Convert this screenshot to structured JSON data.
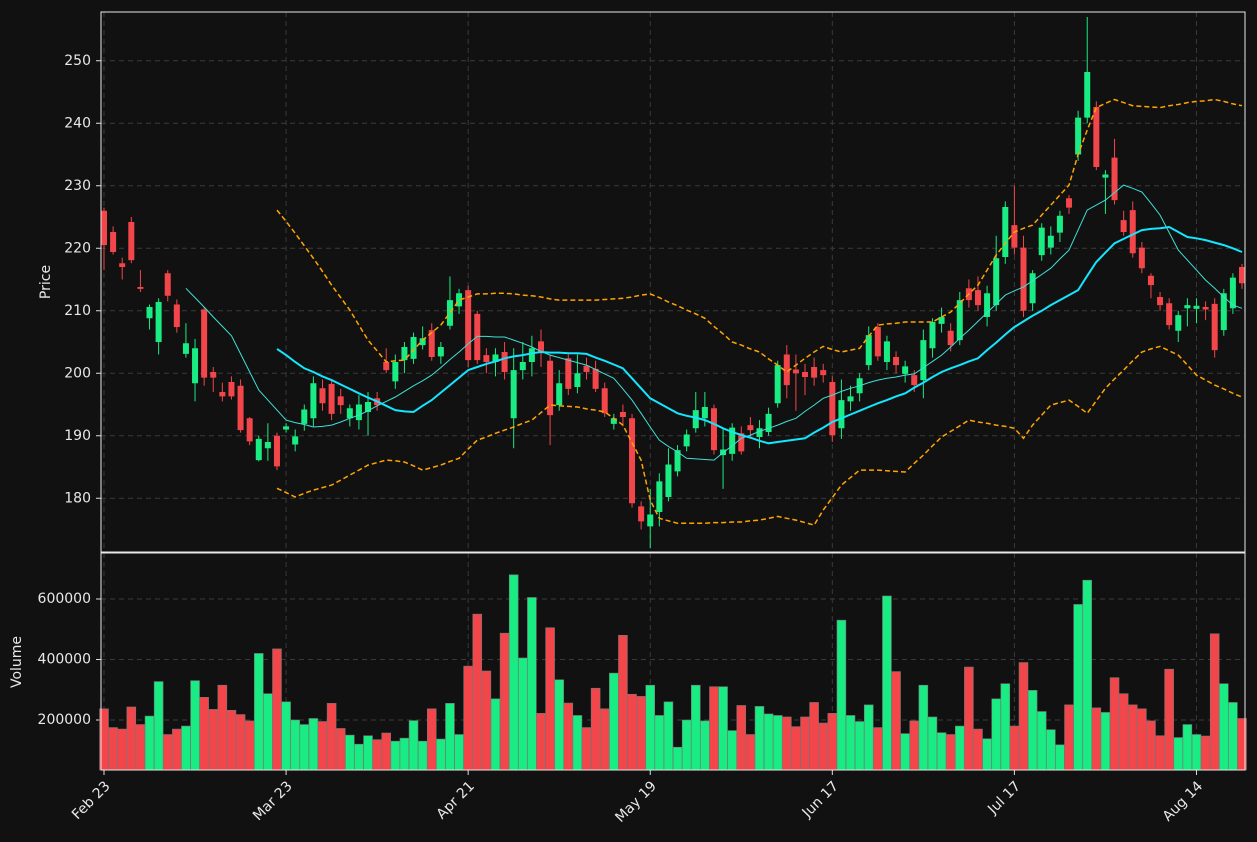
{
  "chart_data": {
    "type": "candlestick",
    "ylabel": "Price",
    "volume_label": "Volume",
    "categories": [
      "Feb 23",
      null,
      null,
      null,
      null,
      null,
      null,
      null,
      null,
      null,
      null,
      null,
      null,
      null,
      null,
      null,
      null,
      null,
      null,
      null,
      "Mar 23",
      null,
      null,
      null,
      null,
      null,
      null,
      null,
      null,
      null,
      null,
      null,
      null,
      null,
      null,
      null,
      null,
      null,
      null,
      null,
      "Apr 21",
      null,
      null,
      null,
      null,
      null,
      null,
      null,
      null,
      null,
      null,
      null,
      null,
      null,
      null,
      null,
      null,
      null,
      null,
      null,
      "May 19",
      null,
      null,
      null,
      null,
      null,
      null,
      null,
      null,
      null,
      null,
      null,
      null,
      null,
      null,
      null,
      null,
      null,
      null,
      null,
      "Jun 17",
      null,
      null,
      null,
      null,
      null,
      null,
      null,
      null,
      null,
      null,
      null,
      null,
      null,
      null,
      null,
      null,
      null,
      null,
      null,
      "Jul 17",
      null,
      null,
      null,
      null,
      null,
      null,
      null,
      null,
      null,
      null,
      null,
      null,
      null,
      null,
      null,
      null,
      null,
      null,
      null,
      "Aug 14",
      null,
      null,
      null,
      null,
      null
    ],
    "open": [
      226,
      222.6,
      217.6,
      224.2,
      213.8,
      208.8,
      205,
      216,
      211,
      203.1,
      198.4,
      210.2,
      200.2,
      197,
      198.6,
      198,
      192.8,
      186.1,
      188,
      190,
      191,
      188.6,
      191.9,
      192.8,
      197.6,
      198.3,
      196.3,
      192.8,
      192.5,
      193.8,
      196,
      201.8,
      198.7,
      202.1,
      202.3,
      204.5,
      206.9,
      202.7,
      207.6,
      210.7,
      213.3,
      209.5,
      202.9,
      201.8,
      203.4,
      192.8,
      200.5,
      201.8,
      205.1,
      202,
      194.9,
      202.4,
      197.8,
      201.2,
      200.7,
      197.6,
      191.9,
      193.8,
      192.8,
      178.7,
      175.5,
      177.8,
      180.2,
      184.3,
      188.3,
      191.2,
      192.8,
      194.4,
      186.9,
      187.1,
      190.4,
      191.7,
      189.8,
      190.6,
      195.2,
      203,
      200.6,
      200.2,
      201,
      200.5,
      198.6,
      191.2,
      195.5,
      196.8,
      201.3,
      207.4,
      201.8,
      202.6,
      199.9,
      199.7,
      198.9,
      204,
      207.9,
      206.8,
      205.3,
      213.6,
      213.3,
      209,
      210.9,
      218.6,
      223.7,
      220.1,
      211.2,
      218.9,
      220.1,
      222.5,
      228,
      235,
      240.9,
      242.6,
      231.3,
      234.5,
      224.5,
      226.1,
      220.1,
      215.6,
      212.2,
      211.2,
      206.8,
      210.4,
      210.3,
      210.6,
      211.1,
      206.9,
      210.4,
      217
    ],
    "high": [
      226.5,
      223.5,
      218.5,
      225,
      216.5,
      211,
      212,
      216.5,
      211.8,
      208,
      205.5,
      210.5,
      201,
      198.5,
      199.5,
      199,
      193,
      190,
      192,
      190.5,
      192,
      191,
      195,
      199.5,
      199,
      199,
      197.5,
      195,
      196.5,
      197,
      197,
      204,
      203,
      205,
      206.5,
      207.5,
      208,
      205,
      215.5,
      213.5,
      214,
      210,
      204,
      204,
      205,
      204,
      205,
      206,
      207,
      203,
      200.5,
      203,
      203,
      202.5,
      202,
      198.5,
      193.5,
      195,
      193.5,
      179.5,
      181.5,
      184,
      188,
      188.5,
      191,
      197,
      197,
      195,
      191,
      192,
      191.5,
      193,
      192.5,
      194.5,
      202,
      204.5,
      203,
      201.5,
      202.5,
      201.5,
      199.5,
      199,
      198,
      200,
      207.5,
      208,
      206,
      203.5,
      202,
      200.5,
      207,
      208.8,
      210.5,
      208,
      213,
      215,
      215.5,
      214,
      222,
      227.5,
      230,
      222,
      216.5,
      224,
      223.5,
      226,
      228.5,
      242,
      257,
      243.5,
      232.5,
      237.5,
      226,
      227.5,
      221,
      216,
      213,
      212,
      210,
      212,
      212,
      211.5,
      212,
      213.5,
      216,
      217.5
    ],
    "low": [
      216.5,
      219,
      215,
      217.6,
      213,
      207,
      203,
      211.5,
      206.5,
      202.5,
      195.5,
      198,
      197,
      195.5,
      195.8,
      190.5,
      188.5,
      185.9,
      186,
      184.5,
      190.5,
      187.5,
      190.8,
      191.5,
      194,
      192.5,
      193.5,
      191.5,
      191,
      190,
      194,
      200,
      197.5,
      200,
      201.5,
      203.8,
      202,
      201.5,
      207,
      209.5,
      201,
      201.5,
      200,
      199.5,
      199,
      188,
      199,
      199.5,
      201,
      188.5,
      194,
      196.5,
      196.8,
      199,
      197,
      193,
      191,
      191.5,
      178.5,
      175,
      172,
      175.5,
      179.5,
      183.5,
      187.5,
      190.5,
      191.5,
      187,
      181.5,
      186,
      187,
      189.5,
      188,
      190,
      194.5,
      196,
      194,
      196.5,
      198,
      198.5,
      189,
      189.5,
      194,
      195.5,
      200.5,
      202,
      200.5,
      200,
      198.5,
      197,
      196,
      202.5,
      206.5,
      203.5,
      204.5,
      210.5,
      210,
      207.5,
      210,
      217.5,
      219,
      209,
      210,
      218,
      219,
      221,
      225.5,
      234,
      240,
      232.5,
      225.5,
      227,
      222,
      218.5,
      216,
      212,
      210,
      207,
      205,
      207.5,
      208,
      208.5,
      202.5,
      206,
      209.5,
      213.5
    ],
    "close": [
      220.5,
      219.4,
      217,
      218.1,
      213.5,
      210.6,
      211.4,
      212.4,
      207.4,
      204.8,
      204,
      199.3,
      199.3,
      196.3,
      196.3,
      190.9,
      189.1,
      189.5,
      189,
      185.1,
      191.5,
      189.9,
      194.2,
      198.4,
      195.2,
      193.5,
      194.9,
      194.4,
      195,
      195.4,
      194.9,
      200.5,
      201.8,
      204.2,
      205.8,
      205.6,
      202.6,
      204.2,
      211.7,
      212.8,
      202.1,
      202.1,
      201.8,
      203,
      200.2,
      200.5,
      201.8,
      204,
      203.4,
      193.3,
      198.4,
      197.5,
      200,
      200.2,
      197.5,
      193.6,
      192.8,
      193,
      179.2,
      176.3,
      177.4,
      182.7,
      185.4,
      187.7,
      190.2,
      194.1,
      194.6,
      187.7,
      187.8,
      191.3,
      187.5,
      190.9,
      191.2,
      193.5,
      201.3,
      198.1,
      200,
      199.4,
      199.3,
      199.7,
      190.1,
      195.7,
      196.3,
      199.2,
      206.1,
      202.7,
      205.1,
      201.3,
      201.1,
      198.1,
      205.3,
      208.2,
      209,
      204.5,
      211.7,
      211.7,
      210.9,
      212.8,
      218.4,
      226.6,
      220.1,
      210,
      216,
      223.3,
      222,
      225.2,
      226.5,
      240.9,
      248.2,
      233,
      231.8,
      227.7,
      222.6,
      219.2,
      216.8,
      214.1,
      210.9,
      207.7,
      209.3,
      210.9,
      210.8,
      210.2,
      203.7,
      212.8,
      215.3,
      214.4
    ],
    "volume": [
      237000,
      175000,
      170000,
      243000,
      185000,
      213000,
      327000,
      152000,
      170000,
      180000,
      330000,
      275000,
      235000,
      315000,
      232000,
      218000,
      197000,
      420000,
      287000,
      435000,
      260000,
      200000,
      185000,
      205000,
      195000,
      255000,
      172000,
      150000,
      120000,
      148000,
      135000,
      157000,
      130000,
      140000,
      198000,
      130000,
      237000,
      137000,
      255000,
      152000,
      378000,
      550000,
      362000,
      270000,
      487000,
      680000,
      405000,
      605000,
      222000,
      505000,
      333000,
      256000,
      215000,
      175000,
      305000,
      237000,
      355000,
      480000,
      285000,
      278000,
      315000,
      215000,
      260000,
      110000,
      200000,
      315000,
      197000,
      310000,
      310000,
      165000,
      248000,
      152000,
      245000,
      220000,
      215000,
      210000,
      178000,
      210000,
      258000,
      190000,
      222000,
      530000,
      215000,
      195000,
      250000,
      175000,
      610000,
      360000,
      155000,
      197000,
      315000,
      210000,
      158000,
      152000,
      180000,
      375000,
      170000,
      138000,
      270000,
      320000,
      180000,
      390000,
      298000,
      228000,
      168000,
      118000,
      250000,
      582000,
      662000,
      240000,
      225000,
      340000,
      287000,
      250000,
      237000,
      197000,
      148000,
      368000,
      142000,
      185000,
      152000,
      147000,
      485000,
      320000,
      258000,
      205000
    ],
    "up_color": "#19ec82",
    "down_color": "#f2464a",
    "lines": [
      {
        "color": "#3fe0d8",
        "width": 1,
        "dashed": false,
        "values": [
          null,
          null,
          null,
          null,
          null,
          null,
          null,
          null,
          null,
          213.6,
          212.1,
          210.6,
          209,
          207.5,
          206,
          203.1,
          200.2,
          197.3,
          195.7,
          194.1,
          192.5,
          192.1,
          191.8,
          191.4,
          191.5,
          191.7,
          192.2,
          192.8,
          193.3,
          194,
          194.8,
          195.5,
          196.2,
          197.1,
          198,
          198.8,
          199.7,
          200.9,
          202.2,
          203.4,
          204.7,
          205.9,
          205.9,
          205.8,
          205.8,
          205.3,
          204.8,
          204.2,
          203.5,
          202.9,
          202.5,
          202.1,
          201.7,
          201.3,
          200.6,
          199.9,
          199.2,
          197.5,
          195.7,
          193.6,
          191.4,
          189.3,
          188.3,
          187.4,
          186.4,
          186.3,
          186.2,
          186.1,
          187.3,
          188.4,
          189.6,
          190.1,
          190.7,
          191.2,
          191.7,
          192.3,
          192.8,
          193.9,
          194.9,
          196,
          196.5,
          197.1,
          197.6,
          198,
          198.5,
          198.9,
          199.2,
          199.4,
          199.7,
          199.9,
          200.9,
          201.9,
          202.9,
          204.2,
          205.6,
          206.9,
          208.3,
          209.7,
          211.1,
          212.5,
          213.2,
          213.8,
          214.8,
          215.8,
          216.8,
          218.3,
          219.7,
          222.9,
          226.1,
          226.9,
          227.7,
          228.9,
          230.1,
          229.6,
          229,
          227.2,
          225.3,
          222.5,
          219.7,
          218.1,
          216.5,
          214.9,
          213.6,
          212.2,
          210.9,
          210.4
        ]
      },
      {
        "color": "#14e6ff",
        "width": 2,
        "dashed": false,
        "values": [
          null,
          null,
          null,
          null,
          null,
          null,
          null,
          null,
          null,
          null,
          null,
          null,
          null,
          null,
          null,
          null,
          null,
          null,
          null,
          203.9,
          202.9,
          201.8,
          200.8,
          200.2,
          199.5,
          198.9,
          198.2,
          197.5,
          196.8,
          196.1,
          195.5,
          194.8,
          194.1,
          193.9,
          193.8,
          194.8,
          195.7,
          196.9,
          198.1,
          199.3,
          200.5,
          201,
          201.5,
          201.9,
          202.4,
          202.7,
          202.9,
          203.2,
          203.4,
          203.3,
          203.3,
          203.2,
          203.2,
          203.1,
          202.5,
          202,
          201.4,
          200.8,
          199.2,
          197.6,
          196,
          195.2,
          194.4,
          193.6,
          193.2,
          192.9,
          192.5,
          191.9,
          191.2,
          190.6,
          190.1,
          189.7,
          189.2,
          188.8,
          189,
          189.2,
          189.4,
          189.6,
          190.5,
          191.3,
          192.2,
          192.8,
          193.4,
          194,
          194.6,
          195.2,
          195.7,
          196.3,
          196.8,
          197.7,
          198.5,
          199.4,
          200.2,
          200.8,
          201.3,
          201.9,
          202.4,
          203.7,
          204.9,
          206.2,
          207.4,
          208.3,
          209.2,
          210,
          210.9,
          211.7,
          212.5,
          213.3,
          215.6,
          217.8,
          219.3,
          220.8,
          221.5,
          222.2,
          222.9,
          223.1,
          223.2,
          223.4,
          222.6,
          221.8,
          221.6,
          221.3,
          220.9,
          220.5,
          220,
          219.4
        ]
      },
      {
        "color": "#ffa500",
        "width": 1.5,
        "dashed": true,
        "values": [
          null,
          null,
          null,
          null,
          null,
          null,
          null,
          null,
          null,
          null,
          null,
          null,
          null,
          null,
          null,
          null,
          null,
          null,
          null,
          226.1,
          224.3,
          222.4,
          220.4,
          218.4,
          216.3,
          214.1,
          212.1,
          210.1,
          207.7,
          205.3,
          203.6,
          201.8,
          202,
          202.1,
          203.7,
          205.3,
          206.5,
          207.7,
          209.7,
          211.7,
          212.2,
          212.7,
          212.7,
          212.8,
          212.8,
          212.7,
          212.5,
          212.4,
          212.2,
          211.9,
          211.7,
          211.7,
          211.7,
          211.7,
          211.7,
          211.8,
          211.9,
          212,
          212.2,
          212.5,
          212.7,
          212.1,
          211.4,
          210.8,
          210.1,
          209.5,
          208.8,
          207.5,
          206.3,
          205,
          204.5,
          203.9,
          203.4,
          202.3,
          201.3,
          200.2,
          201.3,
          202.4,
          203.4,
          204.3,
          203.8,
          203.4,
          203.7,
          204,
          205.9,
          207.7,
          207.9,
          208,
          208.2,
          208.2,
          208.2,
          208.2,
          209,
          209.8,
          211.2,
          212.7,
          214.1,
          216.5,
          218.9,
          220.8,
          222.6,
          223.2,
          223.7,
          225.3,
          226.9,
          228.5,
          230.1,
          235,
          238.9,
          242.5,
          243.2,
          243.8,
          243.3,
          242.8,
          242.7,
          242.6,
          242.5,
          242.8,
          243,
          243.3,
          243.5,
          243.6,
          243.8,
          243.5,
          243.1,
          242.8
        ]
      },
      {
        "color": "#ffa500",
        "width": 1.5,
        "dashed": true,
        "values": [
          null,
          null,
          null,
          null,
          null,
          null,
          null,
          null,
          null,
          null,
          null,
          null,
          null,
          null,
          null,
          null,
          null,
          null,
          null,
          181.6,
          180.9,
          180.2,
          180.8,
          181.3,
          181.7,
          182.1,
          182.9,
          183.7,
          184.5,
          185.3,
          185.7,
          186.1,
          186,
          185.8,
          185.2,
          184.5,
          184.9,
          185.3,
          185.9,
          186.4,
          187.9,
          189.3,
          189.8,
          190.4,
          190.9,
          191.4,
          192,
          192.5,
          193.7,
          194.9,
          194.8,
          194.7,
          194.6,
          194.3,
          194.1,
          193.8,
          192.8,
          191.7,
          188.9,
          186.1,
          179.7,
          176.8,
          176.4,
          176,
          176,
          176,
          176,
          176.1,
          176.1,
          176.2,
          176.2,
          176.4,
          176.5,
          176.8,
          177.1,
          176.8,
          176.5,
          176.1,
          175.7,
          178.1,
          180.1,
          182.1,
          183.3,
          184.5,
          184.5,
          184.5,
          184.4,
          184.3,
          184.2,
          185.6,
          186.9,
          188.4,
          189.8,
          190.7,
          191.6,
          192.5,
          192.2,
          192,
          191.7,
          191.5,
          191.2,
          189.6,
          191.7,
          193.3,
          194.9,
          195.3,
          195.7,
          194.7,
          193.6,
          195.6,
          197.6,
          199.1,
          200.5,
          202,
          203.4,
          203.9,
          204.3,
          203.6,
          202.9,
          201.3,
          199.7,
          198.9,
          198.1,
          197.5,
          196.8,
          196.2
        ]
      }
    ],
    "ylim": [
      171.4,
      257.8
    ],
    "yticks": [
      180,
      190,
      200,
      210,
      220,
      230,
      240,
      250
    ],
    "volume_ylim": [
      34700,
      752000
    ],
    "volume_yticks": [
      200000,
      400000,
      600000
    ],
    "grid": true
  }
}
